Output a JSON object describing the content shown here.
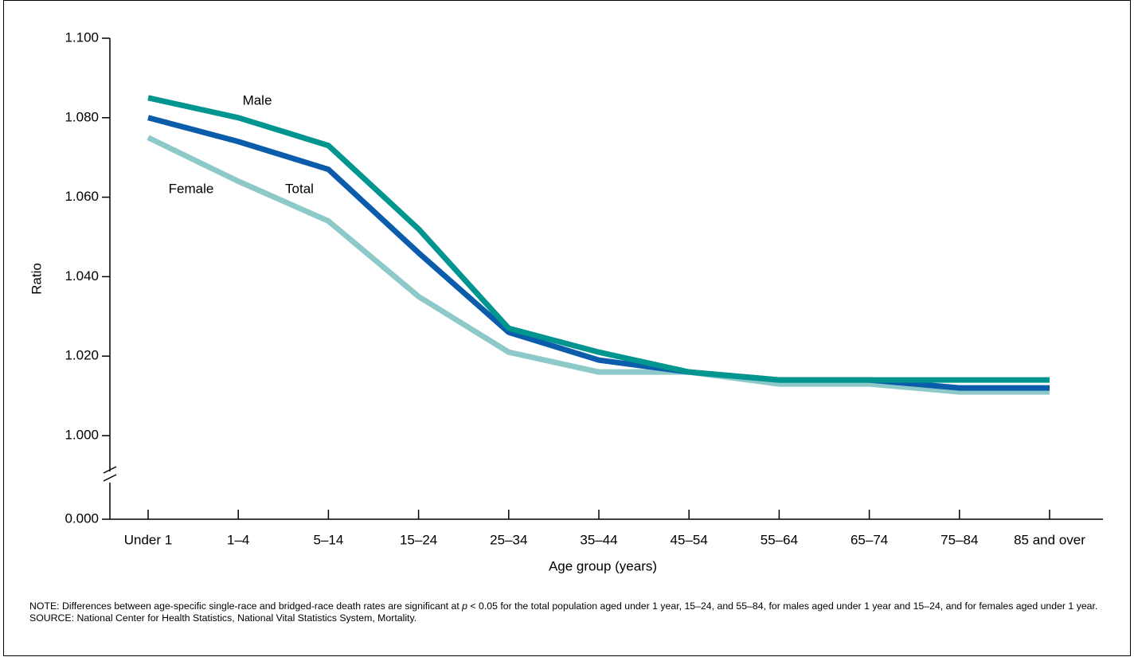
{
  "chart_data": {
    "type": "line",
    "categories": [
      "Under 1",
      "1–4",
      "5–14",
      "15–24",
      "25–34",
      "35–44",
      "45–54",
      "55–64",
      "65–74",
      "75–84",
      "85 and over"
    ],
    "series": [
      {
        "name": "Male",
        "color": "#00968f",
        "values": [
          1.085,
          1.08,
          1.073,
          1.052,
          1.027,
          1.021,
          1.016,
          1.014,
          1.014,
          1.014,
          1.014
        ]
      },
      {
        "name": "Total",
        "color": "#0b5dab",
        "values": [
          1.08,
          1.074,
          1.067,
          1.046,
          1.026,
          1.019,
          1.016,
          1.014,
          1.014,
          1.012,
          1.012
        ]
      },
      {
        "name": "Female",
        "color": "#8ec9c9",
        "values": [
          1.075,
          1.064,
          1.054,
          1.035,
          1.021,
          1.016,
          1.016,
          1.013,
          1.013,
          1.011,
          1.011
        ]
      }
    ],
    "ylim": [
      1.0,
      1.1
    ],
    "yticks": [
      {
        "value": 0,
        "label": "0.000"
      },
      {
        "value": 1.0,
        "label": "1.000"
      },
      {
        "value": 1.02,
        "label": "1.020"
      },
      {
        "value": 1.04,
        "label": "1.040"
      },
      {
        "value": 1.06,
        "label": "1.060"
      },
      {
        "value": 1.08,
        "label": "1.080"
      },
      {
        "value": 1.1,
        "label": "1.100"
      }
    ],
    "y_axis_break": true,
    "ylabel": "Ratio",
    "xlabel": "Age group (years)",
    "note": [
      "NOTE: Differences between age-specific single-race and bridged-race death rates are significant at ",
      "p",
      " < 0.05 for the total population aged under 1 year, 15–24, and 55–84, for males aged under 1 year and 15–24, and for females aged under 1 year."
    ],
    "source": "SOURCE: National Center for Health Statistics, National Vital Statistics System, Mortality."
  }
}
